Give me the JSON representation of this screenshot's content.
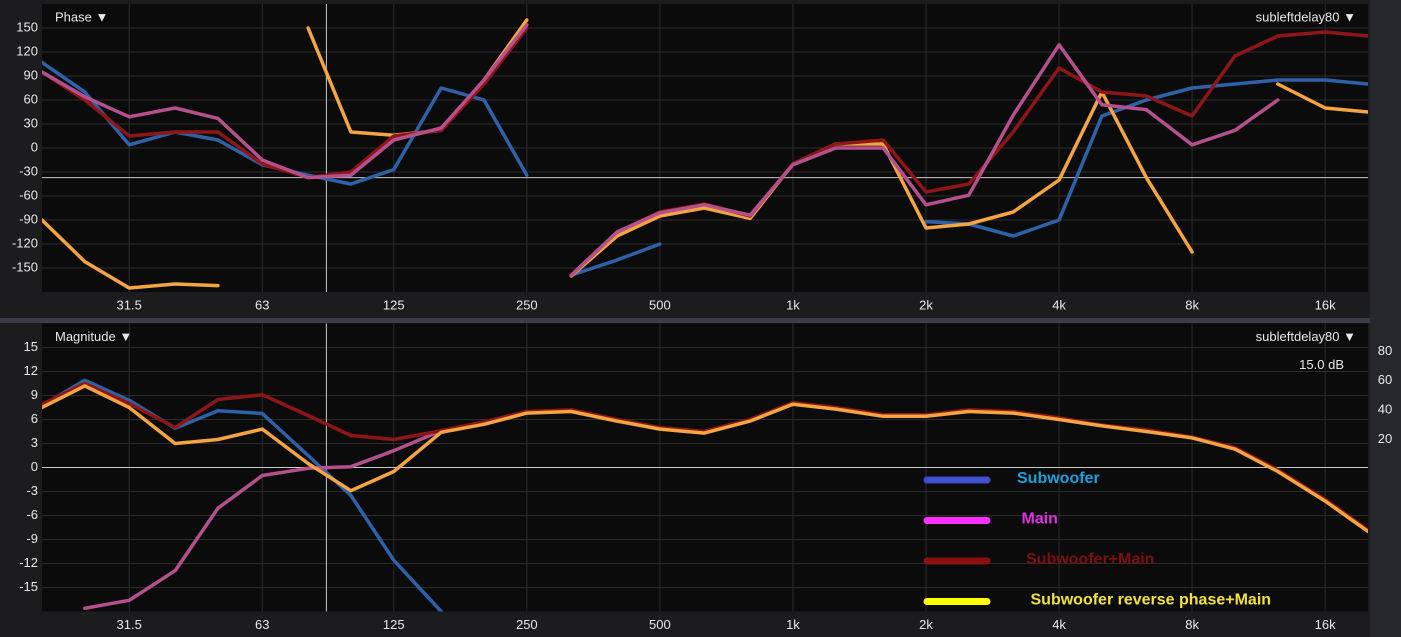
{
  "chart_data": [
    {
      "type": "line",
      "title": "Phase ▼",
      "measurement": "subleftdelay80 ▼",
      "x_scale": "log",
      "grid": true,
      "xlim": [
        20,
        20000
      ],
      "ylim": [
        -180,
        180
      ],
      "xticks": [
        31.5,
        63,
        125,
        250,
        500,
        {
          "value": 1000,
          "label": "1k"
        },
        {
          "value": 2000,
          "label": "2k"
        },
        {
          "value": 4000,
          "label": "4k"
        },
        {
          "value": 8000,
          "label": "8k"
        },
        {
          "value": 16000,
          "label": "16k"
        }
      ],
      "yticks": [
        150,
        120,
        90,
        60,
        30,
        0,
        -30,
        -60,
        -90,
        -120,
        -150
      ],
      "cursor": {
        "x": 88,
        "y": -37
      },
      "x": [
        20,
        25,
        31.5,
        40,
        50,
        63,
        80,
        100,
        125,
        160,
        200,
        250,
        280,
        315,
        400,
        500,
        630,
        800,
        1000,
        1250,
        1600,
        2000,
        2500,
        3150,
        4000,
        5000,
        6300,
        8000,
        10000,
        12500,
        16000,
        20000
      ],
      "series": [
        {
          "name": "Subwoofer",
          "color": "#2d62a8",
          "values": [
            107,
            70,
            4,
            20,
            10,
            -21,
            -34,
            -45,
            -27,
            75,
            60,
            -34,
            null,
            -159,
            -140,
            -120,
            null,
            null,
            null,
            null,
            null,
            -92,
            -95,
            -110,
            -90,
            40,
            60,
            75,
            80,
            85,
            85,
            80
          ]
        },
        {
          "name": "Subwoofer reverse phase+Main",
          "color": "#f5a442",
          "values": [
            -90,
            -142,
            -175,
            -170,
            -172,
            null,
            150,
            20,
            16,
            22,
            85,
            160,
            null,
            -160,
            -110,
            -85,
            -75,
            -88,
            -20,
            5,
            5,
            -100,
            -95,
            -80,
            -40,
            70,
            -37,
            -130,
            null,
            80,
            50,
            45
          ]
        },
        {
          "name": "Subwoofer+Main",
          "color": "#8e1616",
          "values": [
            95,
            60,
            15,
            20,
            20,
            -20,
            -37,
            -30,
            15,
            22,
            80,
            150,
            null,
            -159,
            -105,
            -80,
            -70,
            -85,
            -20,
            5,
            10,
            -55,
            -45,
            20,
            100,
            70,
            65,
            40,
            115,
            140,
            145,
            140
          ]
        },
        {
          "name": "Main",
          "color": "#b5508e",
          "values": [
            95,
            64,
            39,
            50,
            37,
            -15,
            -37,
            -34,
            10,
            25,
            85,
            154,
            null,
            -159,
            -105,
            -81,
            -71,
            -84,
            -21,
            0,
            0,
            -71,
            -59,
            41,
            129,
            54,
            48,
            4,
            22,
            60,
            null,
            null
          ]
        }
      ]
    },
    {
      "type": "line",
      "title": "Magnitude ▼",
      "measurement": "subleftdelay80 ▼",
      "scale_label": "15.0 dB",
      "x_scale": "log",
      "grid": true,
      "legend": true,
      "xlim": [
        20,
        20000
      ],
      "ylim": [
        -18,
        18
      ],
      "y2lim": [
        -97,
        99
      ],
      "xticks": [
        31.5,
        63,
        125,
        250,
        500,
        {
          "value": 1000,
          "label": "1k"
        },
        {
          "value": 2000,
          "label": "2k"
        },
        {
          "value": 4000,
          "label": "4k"
        },
        {
          "value": 8000,
          "label": "8k"
        },
        {
          "value": 16000,
          "label": "16k"
        }
      ],
      "yticks": [
        15,
        12,
        9,
        6,
        3,
        0,
        -3,
        -6,
        -9,
        -12,
        -15
      ],
      "y2ticks": [
        80,
        60,
        40,
        20
      ],
      "cursor": {
        "x": 88,
        "y": 0
      },
      "x": [
        20,
        25,
        31.5,
        40,
        50,
        63,
        80,
        100,
        125,
        160,
        200,
        250,
        315,
        400,
        500,
        630,
        800,
        1000,
        1250,
        1600,
        2000,
        2500,
        3150,
        4000,
        5000,
        6300,
        8000,
        10000,
        12500,
        16000,
        20000
      ],
      "series": [
        {
          "name": "Subwoofer",
          "color": "#2d62a8",
          "legend_color": "#3f4fd0",
          "legend_text_color": "#1ea0dc",
          "values": [
            7.75,
            10.9,
            8.4,
            4.9,
            7.1,
            6.75,
            1.5,
            -3.5,
            -11.6,
            -18,
            null,
            null,
            null,
            null,
            null,
            null,
            null,
            null,
            null,
            null,
            null,
            null,
            null,
            null,
            null,
            null,
            null,
            null,
            null,
            null,
            null
          ]
        },
        {
          "name": "Main",
          "color": "#b5508e",
          "legend_color": "#ff30ff",
          "legend_text_color": "#e030e0",
          "values": [
            null,
            -17.6,
            -16.6,
            -12.9,
            -5.1,
            -1,
            -0.1,
            0.1,
            2.1,
            4.6,
            5.5,
            6.9,
            7.1,
            5.9,
            4.9,
            4.4,
            5.9,
            8,
            7.4,
            6.5,
            6.5,
            7.1,
            6.9,
            6.1,
            5.25,
            4.6,
            3.75,
            2.4,
            -0.4,
            -4.1,
            -7.9
          ]
        },
        {
          "name": "Subwoofer+Main",
          "color": "#8e1616",
          "legend_color": "#8a1010",
          "legend_text_color": "#7c1010",
          "values": [
            7.9,
            10.5,
            8,
            5,
            8.5,
            9.1,
            6.5,
            4,
            3.5,
            4.6,
            5.7,
            7,
            7.2,
            6,
            5,
            4.5,
            6,
            8.1,
            7.5,
            6.6,
            6.6,
            7.2,
            7,
            6.2,
            5.3,
            4.7,
            3.8,
            2.5,
            -0.3,
            -4,
            -7.8
          ]
        },
        {
          "name": "Subwoofer reverse phase+Main",
          "color": "#f5a442",
          "legend_color": "#ffff00",
          "legend_text_color": "#f2e23a",
          "values": [
            7.5,
            10.2,
            7.5,
            3,
            3.5,
            4.8,
            0.5,
            -2.9,
            -0.5,
            4.4,
            5.4,
            6.8,
            7.0,
            5.8,
            4.8,
            4.3,
            5.8,
            7.9,
            7.3,
            6.4,
            6.4,
            7.0,
            6.8,
            6.0,
            5.2,
            4.5,
            3.7,
            2.3,
            -0.5,
            -4.2,
            -8.0
          ]
        }
      ]
    }
  ]
}
